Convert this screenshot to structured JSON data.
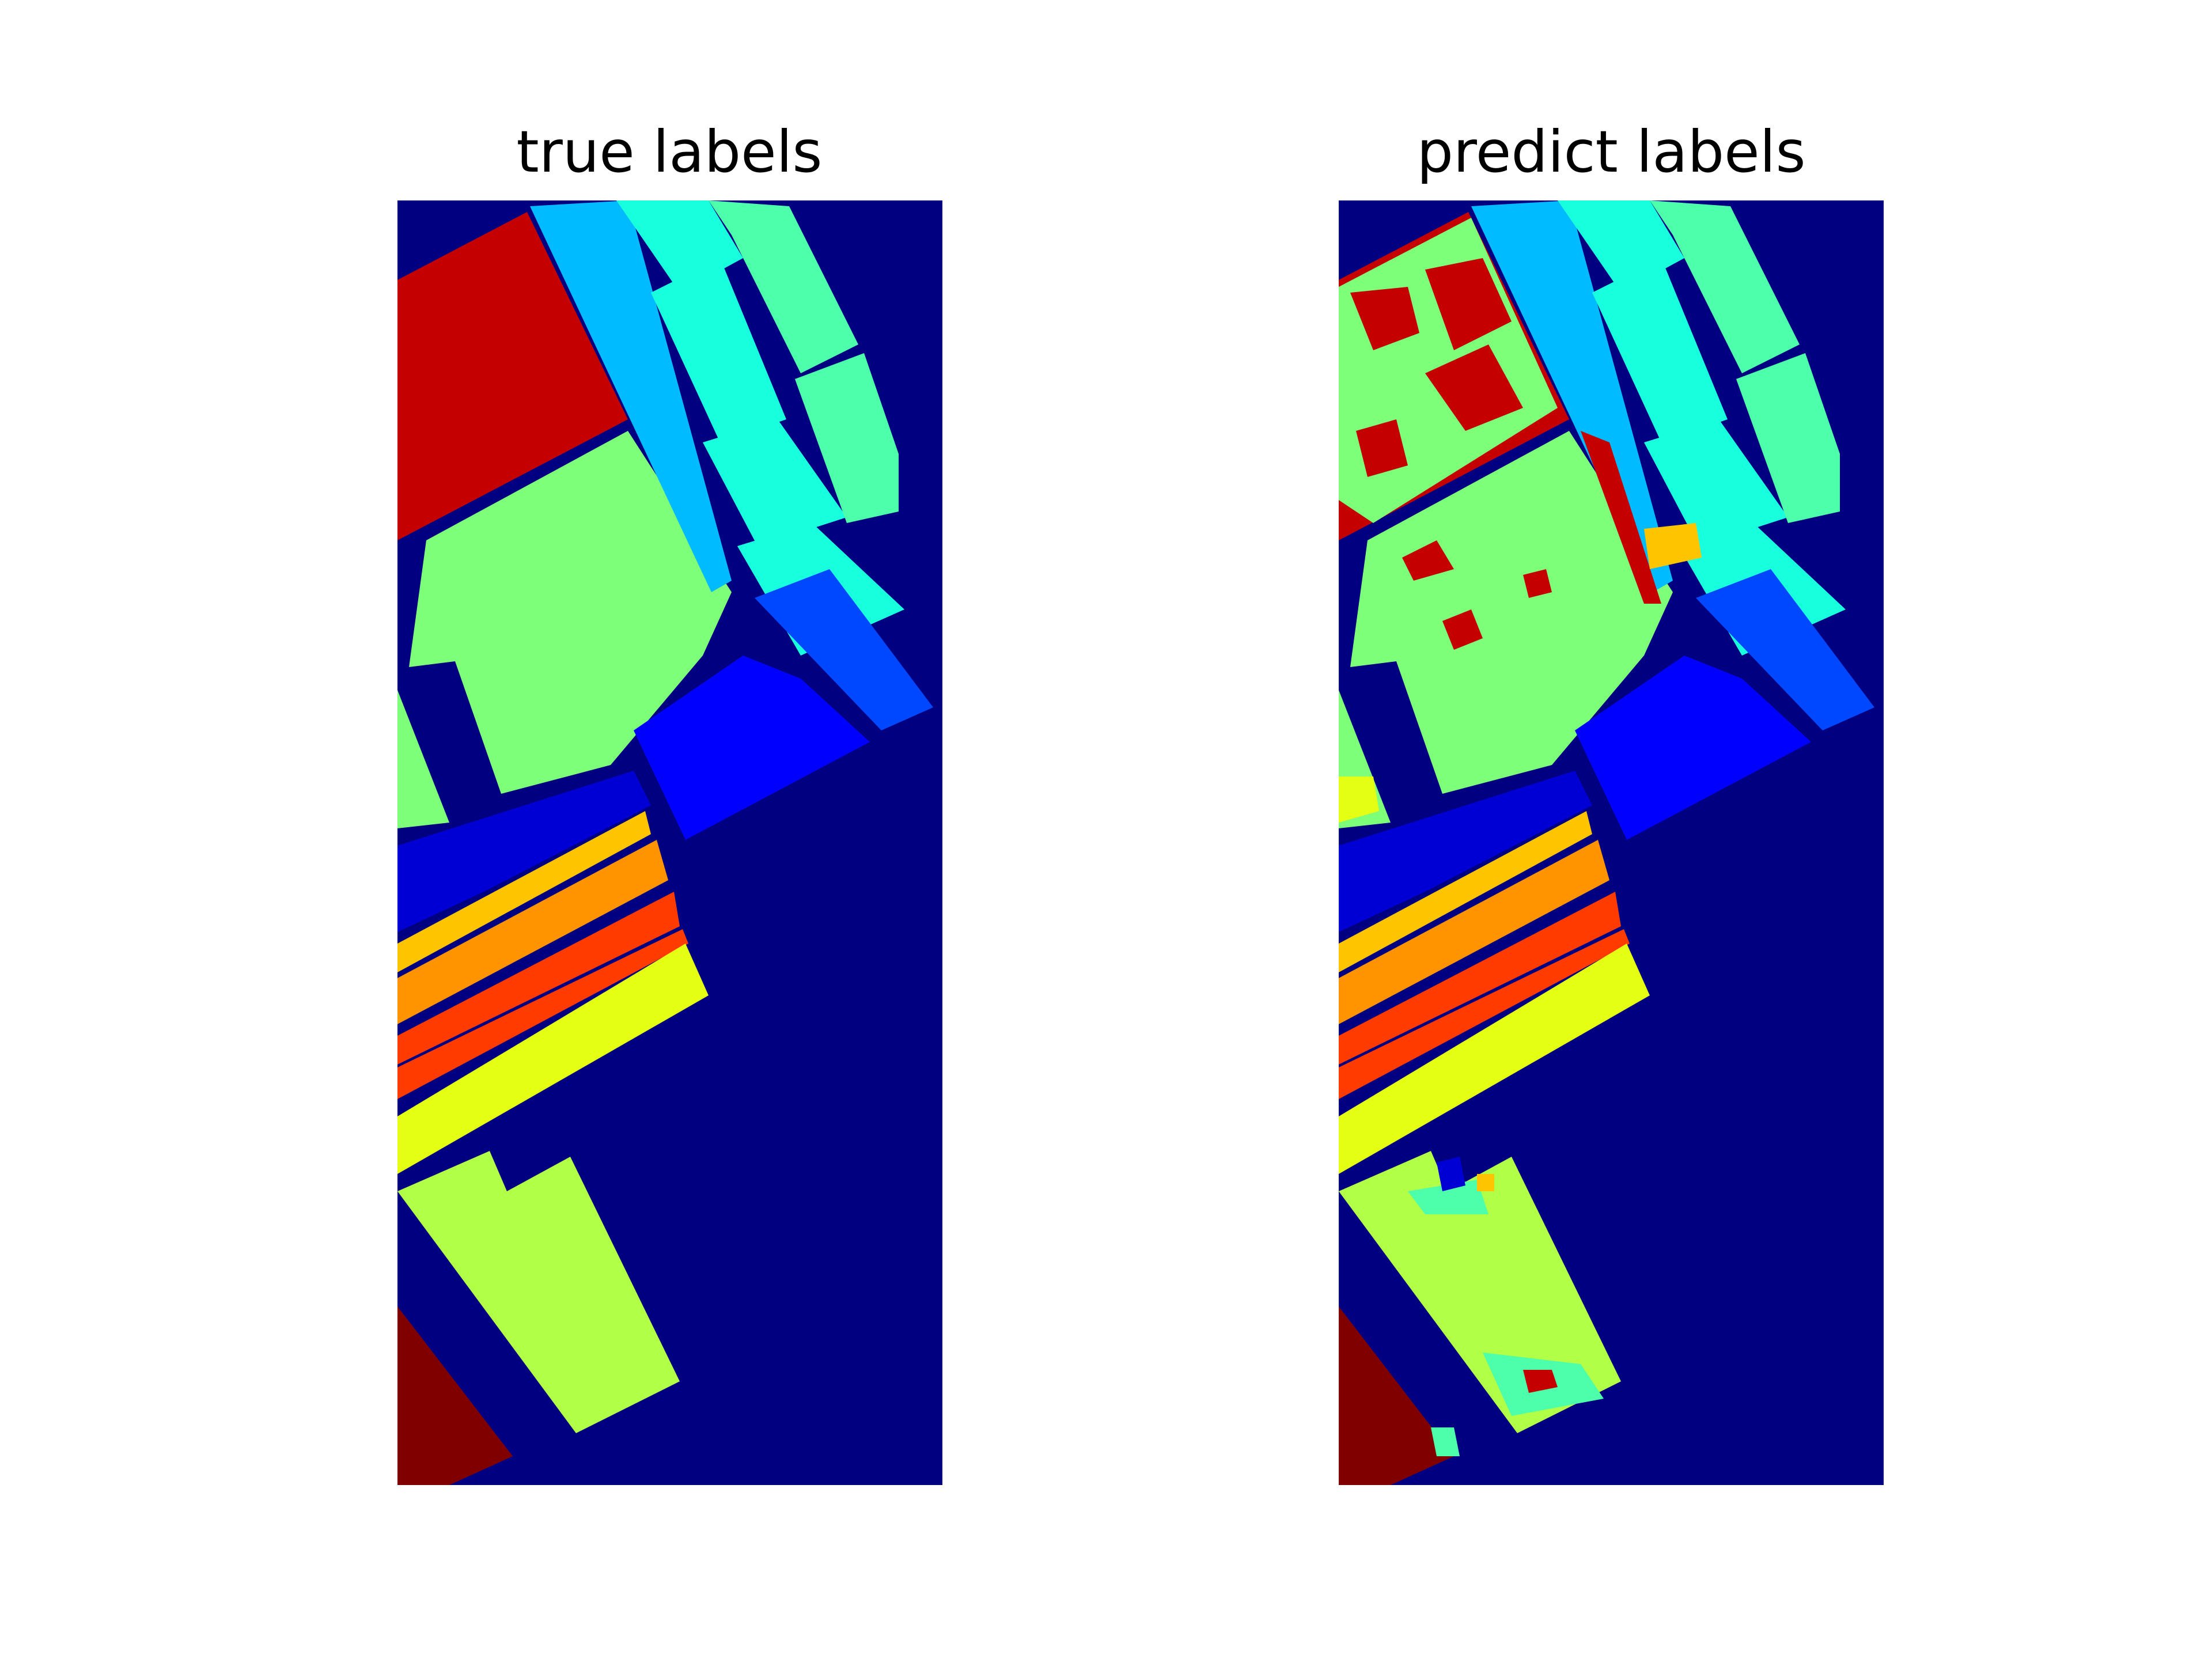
{
  "colors": {
    "background": "#000080",
    "class_1": "#0000d5",
    "class_2": "#0000ff",
    "class_3": "#0048ff",
    "class_4": "#00bbff",
    "class_5": "#18ffde",
    "class_6": "#4dffaa",
    "class_7": "#7dff7a",
    "class_8": "#b1ff46",
    "class_9": "#e4ff13",
    "class_10": "#ffc400",
    "class_11": "#ff9400",
    "class_12": "#ff3b00",
    "class_13": "#c40000",
    "class_14": "#800000"
  },
  "chart_data": [
    {
      "type": "heatmap",
      "title": "true labels",
      "axes": "off",
      "colormap": "jet",
      "description_of_content": "classification label map (hyperspectral scene), 14 colored class regions on a background class"
    },
    {
      "type": "heatmap",
      "title": "predict labels",
      "axes": "off",
      "colormap": "jet",
      "description_of_content": "predicted classification label map of the same scene"
    }
  ]
}
